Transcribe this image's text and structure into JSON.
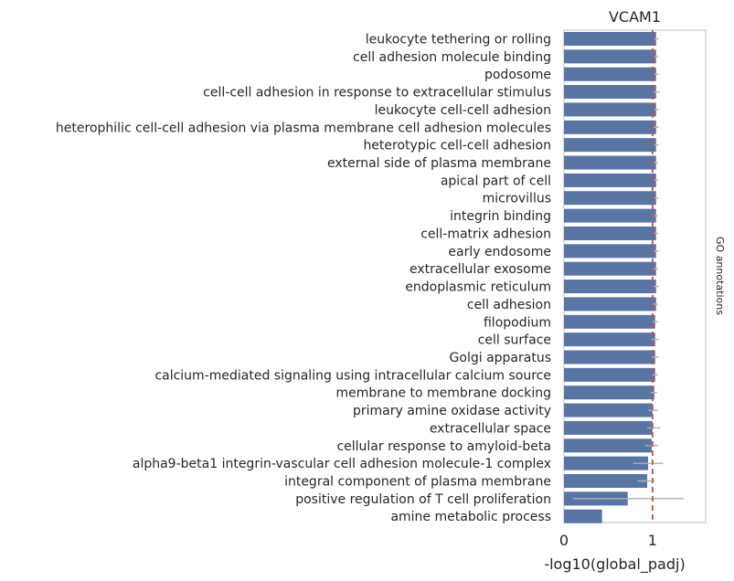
{
  "chart_data": {
    "type": "bar",
    "orientation": "horizontal",
    "title": "VCAM1",
    "xlabel": "-log10(global_padj)",
    "side_label": "GO annotations",
    "xlim": [
      0,
      1.6
    ],
    "xticks": [
      0,
      1
    ],
    "threshold": 1.0,
    "bar_color": "#5875a4",
    "threshold_color": "#c44e52",
    "errorbar_color": "#b0b0b0",
    "categories": [
      "leukocyte tethering or rolling",
      "cell adhesion molecule binding",
      "podosome",
      "cell-cell adhesion in response to extracellular stimulus",
      "leukocyte cell-cell adhesion",
      "heterophilic cell-cell adhesion via plasma membrane cell adhesion molecules",
      "heterotypic cell-cell adhesion",
      "external side of plasma membrane",
      "apical part of cell",
      "microvillus",
      "integrin binding",
      "cell-matrix adhesion",
      "early endosome",
      "extracellular exosome",
      "endoplasmic reticulum",
      "cell adhesion",
      "filopodium",
      "cell surface",
      "Golgi apparatus",
      "calcium-mediated signaling using intracellular calcium source",
      "membrane to membrane docking",
      "primary amine oxidase activity",
      "extracellular space",
      "cellular response to amyloid-beta",
      "alpha9-beta1 integrin-vascular cell adhesion molecule-1 complex",
      "integral component of plasma membrane",
      "positive regulation of T cell proliferation",
      "amine metabolic process"
    ],
    "values": [
      1.04,
      1.04,
      1.04,
      1.04,
      1.04,
      1.04,
      1.04,
      1.04,
      1.04,
      1.04,
      1.04,
      1.04,
      1.04,
      1.04,
      1.04,
      1.04,
      1.03,
      1.03,
      1.03,
      1.03,
      1.02,
      1.0,
      1.0,
      0.99,
      0.95,
      0.94,
      0.72,
      0.43
    ],
    "errors": [
      [
        1.02,
        1.07
      ],
      [
        1.02,
        1.07
      ],
      [
        1.02,
        1.07
      ],
      [
        1.01,
        1.08
      ],
      [
        1.02,
        1.07
      ],
      [
        1.01,
        1.07
      ],
      [
        1.02,
        1.07
      ],
      [
        1.01,
        1.06
      ],
      [
        1.02,
        1.06
      ],
      [
        1.02,
        1.07
      ],
      [
        1.02,
        1.06
      ],
      [
        1.02,
        1.06
      ],
      [
        1.01,
        1.07
      ],
      [
        1.01,
        1.06
      ],
      [
        1.01,
        1.07
      ],
      [
        1.0,
        1.06
      ],
      [
        1.0,
        1.06
      ],
      [
        0.99,
        1.07
      ],
      [
        0.99,
        1.07
      ],
      [
        1.0,
        1.06
      ],
      [
        0.98,
        1.05
      ],
      [
        0.95,
        1.06
      ],
      [
        0.94,
        1.09
      ],
      [
        0.92,
        1.06
      ],
      [
        0.78,
        1.12
      ],
      [
        0.83,
        1.02
      ],
      [
        0.1,
        1.35
      ],
      [
        0.43,
        0.43
      ]
    ]
  }
}
